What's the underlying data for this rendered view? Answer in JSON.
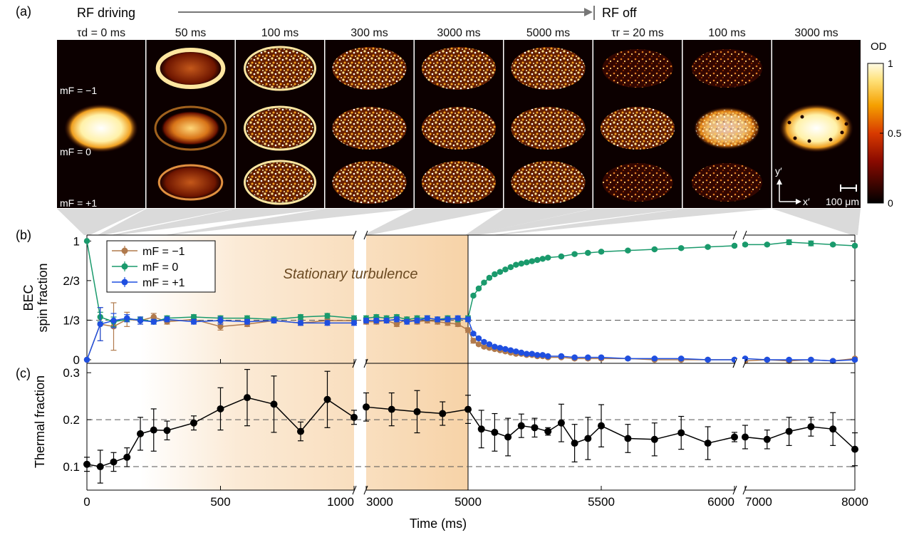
{
  "panel_labels": {
    "a": "(a)",
    "b": "(b)",
    "c": "(c)"
  },
  "header": {
    "rf_driving": "RF driving",
    "rf_off": "RF off"
  },
  "snapshots": {
    "labels": [
      "τd = 0 ms",
      "50 ms",
      "100 ms",
      "300 ms",
      "3000 ms",
      "5000 ms",
      "τr = 20 ms",
      "100 ms",
      "3000 ms"
    ],
    "state_labels": [
      "mF = −1",
      "mF = 0",
      "mF = +1"
    ],
    "scale_bar": "100 μm",
    "axis_x": "x′",
    "axis_y": "y′"
  },
  "colorbar": {
    "title": "OD",
    "ticks": [
      "1",
      "0.5",
      "0"
    ],
    "tick_values": [
      1,
      0.5,
      0
    ]
  },
  "colors": {
    "m_minus": "#b07a4d",
    "m_zero": "#1a9a6c",
    "m_plus": "#1f4fe0",
    "thermal": "#000000",
    "shade": "#f4c48a"
  },
  "chart_data": [
    {
      "type": "line",
      "panel": "b",
      "ylabel": "BEC spin fraction",
      "ytick_labels": [
        "1",
        "2/3",
        "1/3",
        "0"
      ],
      "ytick_values": [
        1,
        0.6667,
        0.3333,
        0
      ],
      "ylim": [
        -0.03,
        1.05
      ],
      "annotation": "Stationary turbulence",
      "dashed_lines": [
        0.3333
      ],
      "series": [
        {
          "name": "mF = −1",
          "color": "#b07a4d",
          "x": [
            0,
            50,
            100,
            150,
            200,
            250,
            300,
            400,
            500,
            600,
            700,
            800,
            900,
            1000,
            3000,
            3200,
            3400,
            3600,
            3800,
            4000,
            4200,
            4400,
            4600,
            4800,
            5000,
            5020,
            5040,
            5060,
            5080,
            5100,
            5120,
            5140,
            5160,
            5180,
            5200,
            5220,
            5240,
            5260,
            5280,
            5300,
            5350,
            5400,
            5450,
            5500,
            5600,
            5700,
            5800,
            5900,
            6000,
            7000,
            7200,
            7400,
            7600,
            7800,
            8000
          ],
          "y": [
            0,
            0.3,
            0.28,
            0.34,
            0.33,
            0.36,
            0.32,
            0.34,
            0.28,
            0.3,
            0.33,
            0.31,
            0.33,
            0.33,
            0.32,
            0.32,
            0.33,
            0.3,
            0.34,
            0.32,
            0.33,
            0.32,
            0.31,
            0.3,
            0.25,
            0.16,
            0.13,
            0.11,
            0.1,
            0.09,
            0.08,
            0.07,
            0.06,
            0.05,
            0.05,
            0.04,
            0.04,
            0.03,
            0.03,
            0.02,
            0.02,
            0.01,
            0.01,
            0.01,
            0.01,
            0.0,
            0.0,
            0.0,
            0.0,
            -0.01,
            0.0,
            -0.01,
            0.0,
            -0.01,
            0.01
          ],
          "err": [
            0,
            0.14,
            0.2,
            0.06,
            0.03,
            0.03,
            0.02,
            0.03,
            0.03,
            0.02,
            0.02,
            0.02,
            0.02,
            0.02,
            0.02,
            0.02,
            0.02,
            0.02,
            0.02,
            0.02,
            0.02,
            0.02,
            0.02,
            0.02,
            0.02,
            0.02,
            0.01,
            0.01,
            0.01,
            0.01,
            0.01,
            0.01,
            0.01,
            0.01,
            0.01,
            0.01,
            0.01,
            0.01,
            0.01,
            0.01,
            0.01,
            0.01,
            0.01,
            0.01,
            0.01,
            0.01,
            0.01,
            0.01,
            0.01,
            0.01,
            0.01,
            0.01,
            0.01,
            0.01,
            0.01
          ]
        },
        {
          "name": "mF = 0",
          "color": "#1a9a6c",
          "x": [
            0,
            50,
            100,
            150,
            200,
            250,
            300,
            400,
            500,
            600,
            700,
            800,
            900,
            1000,
            3000,
            3200,
            3400,
            3600,
            3800,
            4000,
            4200,
            4400,
            4600,
            4800,
            5000,
            5020,
            5040,
            5060,
            5080,
            5100,
            5120,
            5140,
            5160,
            5180,
            5200,
            5220,
            5240,
            5260,
            5280,
            5300,
            5350,
            5400,
            5450,
            5500,
            5600,
            5700,
            5800,
            5900,
            6000,
            7000,
            7200,
            7400,
            7600,
            7800,
            8000
          ],
          "y": [
            1.0,
            0.36,
            0.32,
            0.34,
            0.34,
            0.32,
            0.35,
            0.36,
            0.35,
            0.35,
            0.34,
            0.36,
            0.37,
            0.35,
            0.35,
            0.36,
            0.35,
            0.36,
            0.34,
            0.35,
            0.35,
            0.34,
            0.35,
            0.34,
            0.35,
            0.54,
            0.6,
            0.65,
            0.69,
            0.72,
            0.74,
            0.76,
            0.78,
            0.8,
            0.81,
            0.82,
            0.83,
            0.84,
            0.85,
            0.86,
            0.87,
            0.89,
            0.9,
            0.91,
            0.92,
            0.93,
            0.94,
            0.95,
            0.96,
            0.97,
            0.97,
            0.99,
            0.98,
            0.97,
            0.96
          ],
          "err": [
            0,
            0.04,
            0.04,
            0.02,
            0.02,
            0.02,
            0.02,
            0.02,
            0.02,
            0.02,
            0.02,
            0.02,
            0.02,
            0.02,
            0.02,
            0.02,
            0.02,
            0.02,
            0.02,
            0.02,
            0.02,
            0.02,
            0.02,
            0.02,
            0.02,
            0.01,
            0.01,
            0.01,
            0.01,
            0.01,
            0.01,
            0.01,
            0.01,
            0.01,
            0.01,
            0.01,
            0.01,
            0.01,
            0.01,
            0.01,
            0.01,
            0.01,
            0.01,
            0.01,
            0.01,
            0.01,
            0.01,
            0.01,
            0.01,
            0.01,
            0.01,
            0.02,
            0.02,
            0.01,
            0.01
          ]
        },
        {
          "name": "mF = +1",
          "color": "#1f4fe0",
          "x": [
            0,
            50,
            100,
            150,
            200,
            250,
            300,
            400,
            500,
            600,
            700,
            800,
            900,
            1000,
            3000,
            3200,
            3400,
            3600,
            3800,
            4000,
            4200,
            4400,
            4600,
            4800,
            5000,
            5020,
            5040,
            5060,
            5080,
            5100,
            5120,
            5140,
            5160,
            5180,
            5200,
            5220,
            5240,
            5260,
            5280,
            5300,
            5350,
            5400,
            5450,
            5500,
            5600,
            5700,
            5800,
            5900,
            6000,
            7000,
            7200,
            7400,
            7600,
            7800,
            8000
          ],
          "y": [
            0,
            0.3,
            0.33,
            0.35,
            0.33,
            0.32,
            0.34,
            0.32,
            0.33,
            0.32,
            0.33,
            0.31,
            0.31,
            0.31,
            0.33,
            0.33,
            0.33,
            0.34,
            0.32,
            0.33,
            0.35,
            0.34,
            0.34,
            0.35,
            0.34,
            0.22,
            0.18,
            0.15,
            0.13,
            0.11,
            0.1,
            0.09,
            0.08,
            0.07,
            0.06,
            0.05,
            0.05,
            0.04,
            0.04,
            0.03,
            0.03,
            0.02,
            0.02,
            0.02,
            0.01,
            0.01,
            0.01,
            0.0,
            0.0,
            0.01,
            0.0,
            0.0,
            0.0,
            -0.01,
            0.0
          ],
          "err": [
            0,
            0.14,
            0.06,
            0.03,
            0.03,
            0.02,
            0.02,
            0.02,
            0.03,
            0.02,
            0.02,
            0.02,
            0.02,
            0.02,
            0.02,
            0.02,
            0.02,
            0.02,
            0.02,
            0.02,
            0.02,
            0.02,
            0.02,
            0.02,
            0.02,
            0.01,
            0.01,
            0.01,
            0.01,
            0.01,
            0.01,
            0.01,
            0.01,
            0.01,
            0.01,
            0.01,
            0.01,
            0.01,
            0.01,
            0.01,
            0.01,
            0.01,
            0.01,
            0.01,
            0.01,
            0.01,
            0.01,
            0.01,
            0.01,
            0.01,
            0.01,
            0.01,
            0.01,
            0.01,
            0.01
          ]
        }
      ]
    },
    {
      "type": "line",
      "panel": "c",
      "ylabel": "Thermal fraction",
      "xlabel": "Time (ms)",
      "ytick_labels": [
        "0.3",
        "0.2",
        "0.1"
      ],
      "ytick_values": [
        0.3,
        0.2,
        0.1
      ],
      "ylim": [
        0.05,
        0.32
      ],
      "dashed_lines": [
        0.2,
        0.1
      ],
      "series": [
        {
          "color": "#000000",
          "x": [
            0,
            50,
            100,
            150,
            200,
            250,
            300,
            400,
            500,
            600,
            700,
            800,
            900,
            1000,
            3000,
            3500,
            4000,
            4500,
            5000,
            5050,
            5100,
            5150,
            5200,
            5250,
            5300,
            5350,
            5400,
            5450,
            5500,
            5600,
            5700,
            5800,
            5900,
            6000,
            7000,
            7200,
            7400,
            7600,
            7800,
            8000
          ],
          "y": [
            0.105,
            0.1,
            0.11,
            0.12,
            0.17,
            0.178,
            0.177,
            0.193,
            0.223,
            0.247,
            0.233,
            0.175,
            0.243,
            0.205,
            0.227,
            0.222,
            0.217,
            0.213,
            0.222,
            0.18,
            0.173,
            0.163,
            0.187,
            0.183,
            0.175,
            0.193,
            0.15,
            0.16,
            0.187,
            0.16,
            0.158,
            0.172,
            0.15,
            0.163,
            0.163,
            0.158,
            0.175,
            0.185,
            0.18,
            0.137
          ],
          "err": [
            0.015,
            0.035,
            0.02,
            0.02,
            0.035,
            0.045,
            0.02,
            0.015,
            0.045,
            0.06,
            0.06,
            0.02,
            0.06,
            0.015,
            0.03,
            0.035,
            0.045,
            0.025,
            0.03,
            0.04,
            0.04,
            0.04,
            0.025,
            0.02,
            0.008,
            0.04,
            0.04,
            0.045,
            0.045,
            0.03,
            0.035,
            0.035,
            0.035,
            0.01,
            0.025,
            0.02,
            0.03,
            0.02,
            0.035,
            0.035
          ]
        }
      ]
    }
  ],
  "time_axis": {
    "segments": [
      {
        "range": [
          0,
          1000
        ],
        "ticks": [
          0,
          500,
          1000
        ],
        "tick_labels": [
          "0",
          "500",
          "1000"
        ]
      },
      {
        "range": [
          3000,
          5000
        ],
        "ticks": [
          3000,
          5000
        ],
        "tick_labels": [
          "3000",
          "5000"
        ]
      },
      {
        "range": [
          5000,
          6000
        ],
        "ticks": [
          5500,
          6000
        ],
        "tick_labels": [
          "5500",
          "6000"
        ]
      },
      {
        "range": [
          7000,
          8000
        ],
        "ticks": [
          7000,
          8000
        ],
        "tick_labels": [
          "7000",
          "8000"
        ]
      }
    ],
    "label": "Time (ms)"
  }
}
